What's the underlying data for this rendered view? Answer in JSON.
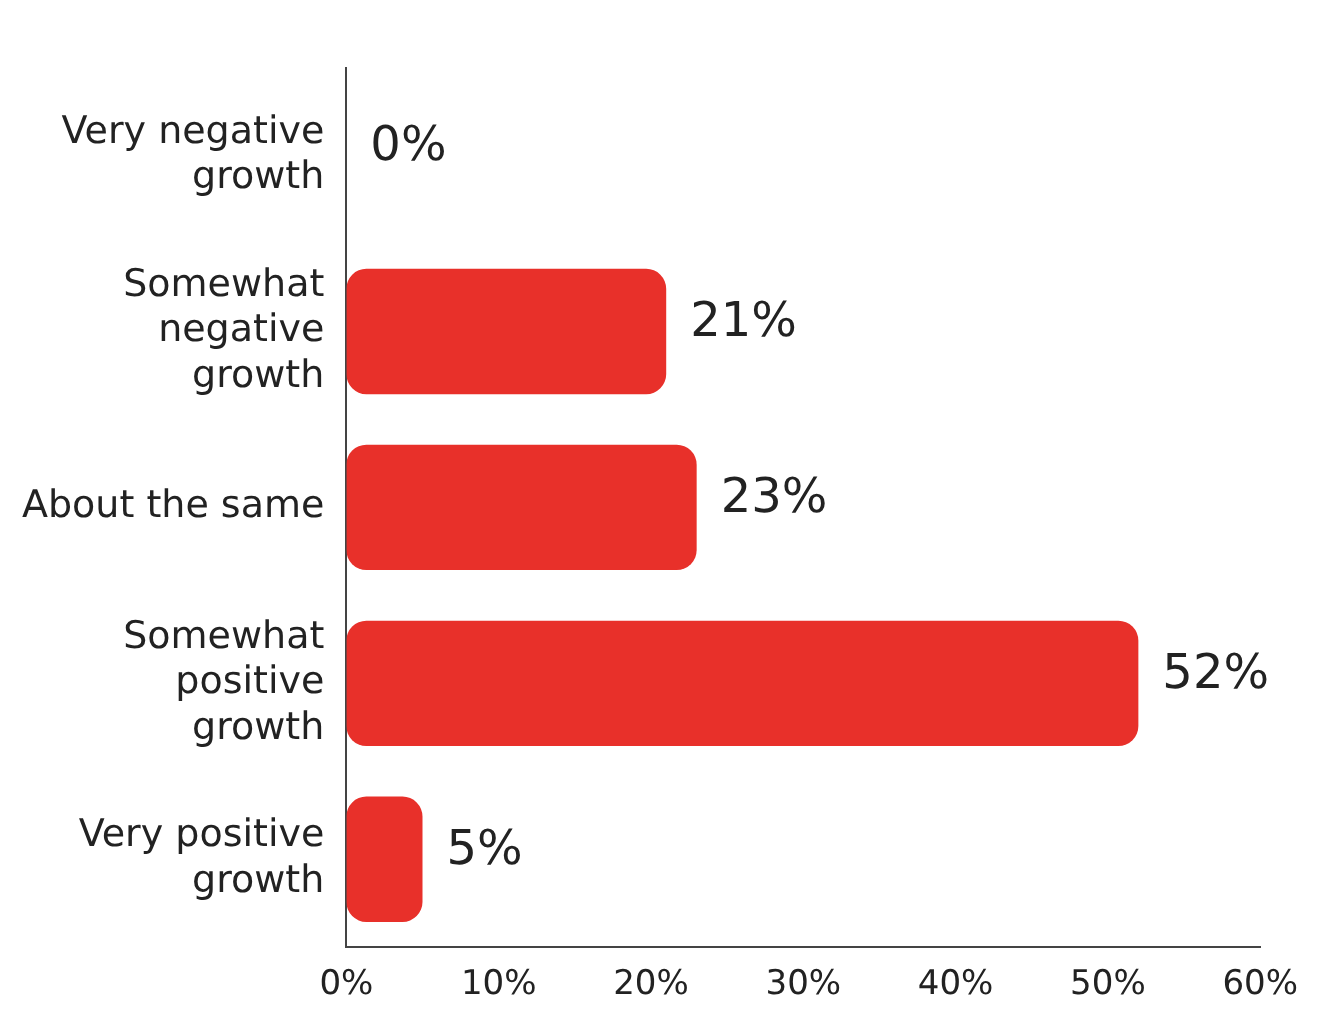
{
  "chart_data": {
    "type": "bar",
    "orientation": "horizontal",
    "categories": [
      "Very negative growth",
      "Somewhat negative growth",
      "About the same",
      "Somewhat positive growth",
      "Very positive growth"
    ],
    "values": [
      0,
      21,
      23,
      52,
      5
    ],
    "value_labels": [
      "0%",
      "21%",
      "23%",
      "52%",
      "5%"
    ],
    "color": "#e8302a",
    "xlim": [
      0,
      60
    ],
    "xticks": [
      {
        "value": 0,
        "label": "0%"
      },
      {
        "value": 10,
        "label": "10%"
      },
      {
        "value": 20,
        "label": "20%"
      },
      {
        "value": 30,
        "label": "30%"
      },
      {
        "value": 40,
        "label": "40%"
      },
      {
        "value": 50,
        "label": "50%"
      },
      {
        "value": 60,
        "label": "60%"
      }
    ],
    "grid": false,
    "legend": false
  }
}
